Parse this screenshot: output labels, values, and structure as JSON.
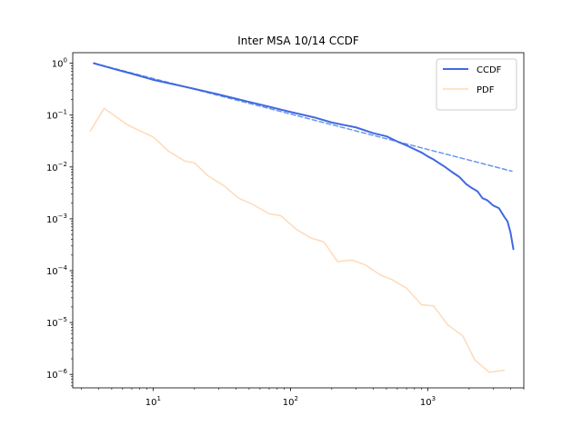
{
  "chart_data": {
    "type": "line",
    "title": "Inter MSA 10/14 CCDF",
    "xlabel": "",
    "ylabel": "",
    "xscale": "log",
    "yscale": "log",
    "xlim": [
      2.6,
      5000
    ],
    "ylim": [
      5.5e-07,
      1.6
    ],
    "grid": false,
    "legend_position": "top-right",
    "x_ticks": [
      {
        "value": 10,
        "base": "10",
        "exp": "1"
      },
      {
        "value": 100,
        "base": "10",
        "exp": "2"
      },
      {
        "value": 1000,
        "base": "10",
        "exp": "3"
      }
    ],
    "y_ticks": [
      {
        "value": 1,
        "base": "10",
        "exp": "0"
      },
      {
        "value": 0.1,
        "base": "10",
        "exp": "−1"
      },
      {
        "value": 0.01,
        "base": "10",
        "exp": "−2"
      },
      {
        "value": 0.001,
        "base": "10",
        "exp": "−3"
      },
      {
        "value": 0.0001,
        "base": "10",
        "exp": "−4"
      },
      {
        "value": 1e-05,
        "base": "10",
        "exp": "−5"
      },
      {
        "value": 1e-06,
        "base": "10",
        "exp": "−6"
      }
    ],
    "series": [
      {
        "name": "CCDF",
        "color": "#4169e1",
        "style": "solid",
        "show_in_legend": true,
        "x": [
          3.7,
          5,
          7,
          10,
          15,
          20,
          30,
          50,
          70,
          100,
          150,
          200,
          300,
          400,
          500,
          600,
          700,
          800,
          900,
          1000,
          1100,
          1200,
          1300,
          1500,
          1700,
          1900,
          2100,
          2300,
          2500,
          2700,
          3000,
          3300,
          3600,
          3800,
          4000,
          4200
        ],
        "y": [
          1.0,
          0.8,
          0.63,
          0.48,
          0.38,
          0.32,
          0.25,
          0.18,
          0.145,
          0.115,
          0.09,
          0.072,
          0.058,
          0.045,
          0.039,
          0.031,
          0.026,
          0.022,
          0.019,
          0.016,
          0.014,
          0.012,
          0.0105,
          0.008,
          0.0064,
          0.0047,
          0.0039,
          0.0034,
          0.0025,
          0.0023,
          0.0018,
          0.0016,
          0.0011,
          0.0009,
          0.00055,
          0.00026
        ]
      },
      {
        "name": "Power-law fit",
        "color": "#6495ed",
        "style": "dashed",
        "show_in_legend": false,
        "x": [
          3.7,
          4100
        ],
        "y": [
          1.0,
          0.0083
        ]
      },
      {
        "name": "PDF",
        "color": "#ffdab9",
        "style": "solid",
        "show_in_legend": true,
        "x": [
          3.5,
          4.4,
          6.5,
          8,
          10,
          13,
          17,
          20,
          25,
          33,
          42,
          53,
          70,
          85,
          110,
          140,
          175,
          220,
          280,
          350,
          450,
          550,
          700,
          900,
          1100,
          1400,
          1800,
          2200,
          2800,
          3600
        ],
        "y": [
          0.05,
          0.135,
          0.065,
          0.05,
          0.038,
          0.02,
          0.013,
          0.012,
          0.0068,
          0.0043,
          0.0025,
          0.0019,
          0.00125,
          0.00115,
          0.00063,
          0.00043,
          0.00036,
          0.00015,
          0.00016,
          0.00013,
          8.3e-05,
          6.7e-05,
          4.6e-05,
          2.2e-05,
          2.1e-05,
          9e-06,
          5.5e-06,
          1.9e-06,
          1.1e-06,
          1.2e-06
        ]
      }
    ]
  }
}
